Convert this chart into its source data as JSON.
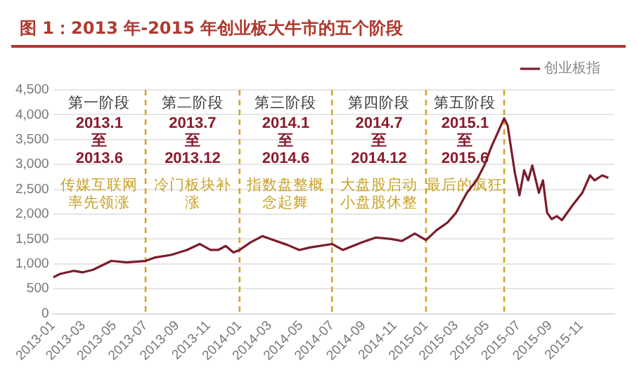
{
  "chart_data": {
    "type": "line",
    "title": "图 1：2013 年-2015 年创业板大牛市的五个阶段",
    "x": [
      "2013-01-01",
      "2013-01-15",
      "2013-02-10",
      "2013-02-28",
      "2013-03-20",
      "2013-04-25",
      "2013-05-25",
      "2013-07-01",
      "2013-07-20",
      "2013-08-20",
      "2013-09-20",
      "2013-10-15",
      "2013-11-05",
      "2013-11-20",
      "2013-12-05",
      "2013-12-20",
      "2014-01-01",
      "2014-01-22",
      "2014-02-15",
      "2014-03-03",
      "2014-04-05",
      "2014-04-28",
      "2014-05-19",
      "2014-07-01",
      "2014-07-22",
      "2014-08-28",
      "2014-09-25",
      "2014-10-25",
      "2014-11-15",
      "2014-12-10",
      "2015-01-01",
      "2015-01-22",
      "2015-02-12",
      "2015-03-01",
      "2015-03-22",
      "2015-04-10",
      "2015-04-25",
      "2015-05-10",
      "2015-05-21",
      "2015-06-03",
      "2015-06-10",
      "2015-06-15",
      "2015-06-24",
      "2015-07-03",
      "2015-07-12",
      "2015-07-20",
      "2015-07-28",
      "2015-08-10",
      "2015-08-18",
      "2015-08-26",
      "2015-09-04",
      "2015-09-14",
      "2015-09-24",
      "2015-10-15",
      "2015-11-03",
      "2015-11-18",
      "2015-11-27",
      "2015-12-12",
      "2015-12-24"
    ],
    "series": [
      {
        "name": "创业板指",
        "color": "#7b1c2c",
        "values": [
          730,
          800,
          860,
          830,
          880,
          1060,
          1030,
          1060,
          1130,
          1180,
          1280,
          1400,
          1280,
          1280,
          1360,
          1230,
          1280,
          1430,
          1560,
          1500,
          1380,
          1280,
          1330,
          1400,
          1280,
          1430,
          1530,
          1500,
          1460,
          1610,
          1480,
          1680,
          1830,
          2030,
          2430,
          2680,
          2980,
          3380,
          3630,
          3930,
          3780,
          3430,
          2830,
          2380,
          2880,
          2680,
          2980,
          2430,
          2680,
          2030,
          1900,
          1960,
          1880,
          2180,
          2430,
          2780,
          2680,
          2780,
          2730
        ]
      }
    ],
    "xlim": [
      "2013-01-01",
      "2016-01-05"
    ],
    "xticks": [
      "2013-01",
      "2013-03",
      "2013-05",
      "2013-07",
      "2013-09",
      "2013-11",
      "2014-01",
      "2014-03",
      "2014-05",
      "2014-07",
      "2014-09",
      "2014-11",
      "2015-01",
      "2015-03",
      "2015-05",
      "2015-07",
      "2015-09",
      "2015-11"
    ],
    "ylim": [
      0,
      4500
    ],
    "yticks": [
      0,
      {
        "value": 500,
        "label": "500"
      },
      {
        "value": 1000,
        "label": "1,000"
      },
      {
        "value": 1500,
        "label": "1,500"
      },
      {
        "value": 2000,
        "label": "2,000"
      },
      {
        "value": 2500,
        "label": "2,500"
      },
      {
        "value": 3000,
        "label": "3,000"
      },
      {
        "value": 3500,
        "label": "3,500"
      },
      {
        "value": 4000,
        "label": "4,000"
      },
      {
        "value": 4500,
        "label": "4,500"
      }
    ],
    "grid": "y",
    "legend": "top right",
    "marker": "none",
    "line_style": "solid",
    "ref_lines": [
      {
        "axis": "x",
        "value": "2013-07-01",
        "color": "#d4a52a",
        "line_style": "dashed"
      },
      {
        "axis": "x",
        "value": "2014-01-01",
        "color": "#d4a52a",
        "line_style": "dashed"
      },
      {
        "axis": "x",
        "value": "2014-07-01",
        "color": "#d4a52a",
        "line_style": "dashed"
      },
      {
        "axis": "x",
        "value": "2015-01-01",
        "color": "#d4a52a",
        "line_style": "dashed"
      },
      {
        "axis": "x",
        "value": "2015-06-03",
        "color": "#d4a52a",
        "line_style": "dashed"
      }
    ],
    "annotations": [
      "第一阶段",
      "2013.1\n至\n2013.6",
      "传媒互联网率先领涨",
      "第二阶段",
      "2013.7\n至\n2013.12",
      "冷门板块补涨",
      "第三阶段",
      "2014.1\n至\n2014.6",
      "指数盘整概念起舞",
      "第四阶段",
      "2014.7\n至\n2014.12",
      "大盘股启动小盘股休整",
      "第五阶段",
      "2015.1\n至\n2015.6",
      "最后的疯狂"
    ]
  }
}
